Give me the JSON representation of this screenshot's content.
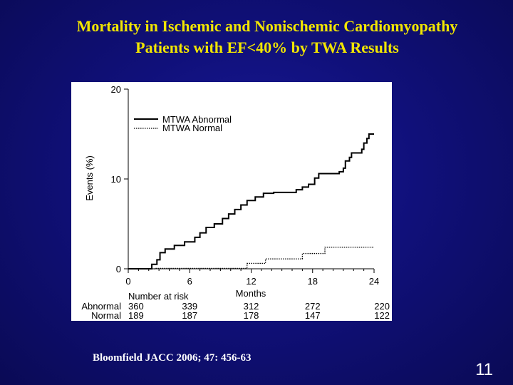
{
  "title": {
    "line1": "Mortality in Ischemic and Nonischemic Cardiomyopathy",
    "line2": "Patients with EF<40% by TWA Results"
  },
  "citation": "Bloomfield JACC 2006; 47: 456-63",
  "page_number": "11",
  "chart_data": {
    "type": "line",
    "title": "",
    "xlabel": "Months",
    "ylabel": "Events (%)",
    "xlim": [
      0,
      24
    ],
    "ylim": [
      0,
      20
    ],
    "x_ticks": [
      0,
      6,
      12,
      18,
      24
    ],
    "y_ticks": [
      0,
      10,
      20
    ],
    "legend_position": "top-right",
    "grid": false,
    "series": [
      {
        "name": "MTWA Abnormal",
        "style": "solid",
        "color": "#000000",
        "points": [
          [
            0,
            0
          ],
          [
            2,
            0
          ],
          [
            2.3,
            0.5
          ],
          [
            2.8,
            1
          ],
          [
            3.1,
            1.8
          ],
          [
            3.6,
            2.2
          ],
          [
            4.5,
            2.6
          ],
          [
            5.5,
            3
          ],
          [
            6,
            3
          ],
          [
            6.5,
            3.5
          ],
          [
            7,
            4
          ],
          [
            7.6,
            4.6
          ],
          [
            8.4,
            5
          ],
          [
            9.2,
            5.6
          ],
          [
            9.8,
            6.1
          ],
          [
            10.4,
            6.6
          ],
          [
            11,
            7.1
          ],
          [
            11.6,
            7.6
          ],
          [
            12.4,
            8
          ],
          [
            13.2,
            8.4
          ],
          [
            14.2,
            8.5
          ],
          [
            15,
            8.5
          ],
          [
            16,
            8.5
          ],
          [
            16.4,
            8.8
          ],
          [
            17,
            9.1
          ],
          [
            17.6,
            9.4
          ],
          [
            18.2,
            10.1
          ],
          [
            18.6,
            10.6
          ],
          [
            19.4,
            10.6
          ],
          [
            20.6,
            10.8
          ],
          [
            21,
            11.2
          ],
          [
            21.2,
            12
          ],
          [
            21.6,
            12.4
          ],
          [
            21.8,
            12.9
          ],
          [
            22.4,
            12.9
          ],
          [
            22.8,
            13.3
          ],
          [
            23,
            14
          ],
          [
            23.3,
            14.5
          ],
          [
            23.5,
            15
          ],
          [
            24,
            15
          ]
        ]
      },
      {
        "name": "MTWA Normal",
        "style": "dotted",
        "color": "#000000",
        "points": [
          [
            0,
            0
          ],
          [
            2.1,
            0
          ],
          [
            2.6,
            0.05
          ],
          [
            11.4,
            0.05
          ],
          [
            11.6,
            0.6
          ],
          [
            13,
            0.6
          ],
          [
            13.4,
            1.1
          ],
          [
            16.5,
            1.1
          ],
          [
            17,
            1.7
          ],
          [
            18.8,
            1.7
          ],
          [
            19.2,
            2.4
          ],
          [
            24,
            2.4
          ]
        ]
      }
    ],
    "risk_table": {
      "header": "Number at risk",
      "rows": [
        {
          "label": "Abnormal",
          "values": [
            "360",
            "339",
            "312",
            "272",
            "220"
          ]
        },
        {
          "label": "Normal",
          "values": [
            "189",
            "187",
            "178",
            "147",
            "122"
          ]
        }
      ]
    }
  }
}
